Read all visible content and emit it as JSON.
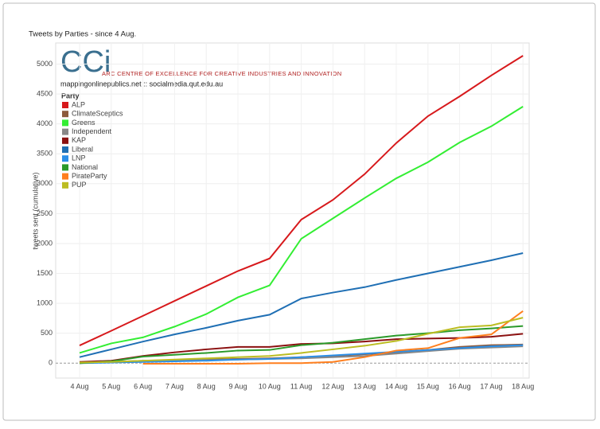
{
  "chart_data": {
    "type": "line",
    "title": "Tweets by Parties - since 4 Aug.",
    "logo_mark": "CCi",
    "logo_text": "ARC CENTRE OF EXCELLENCE FOR CREATIVE INDUSTRIES AND INNOVATION",
    "subtitle": "mappingonlinepublics.net :: socialmedia.qut.edu.au",
    "y_label": "tweets sent (cumulative)",
    "legend_title": "Party",
    "legend_position": "upper left",
    "grid": true,
    "categories": [
      "4 Aug",
      "5 Aug",
      "6 Aug",
      "7 Aug",
      "8 Aug",
      "9 Aug",
      "10 Aug",
      "11 Aug",
      "12 Aug",
      "13 Aug",
      "14 Aug",
      "15 Aug",
      "16 Aug",
      "17 Aug",
      "18 Aug"
    ],
    "ylim": [
      -250,
      5300
    ],
    "yticks": [
      0,
      500,
      1000,
      1500,
      2000,
      2500,
      3000,
      3500,
      4000,
      4500,
      5000
    ],
    "series": [
      {
        "name": "ALP",
        "color": "#d7191c",
        "values": [
          295,
          540,
          790,
          1040,
          1290,
          1540,
          1750,
          2400,
          2730,
          3160,
          3680,
          4130,
          4460,
          4810,
          5140
        ]
      },
      {
        "name": "ClimateSceptics",
        "color": "#8c5a3c",
        "values": [
          0,
          20,
          40,
          50,
          60,
          70,
          80,
          100,
          120,
          150,
          180,
          220,
          270,
          300,
          310
        ]
      },
      {
        "name": "Greens",
        "color": "#33ee33",
        "values": [
          170,
          330,
          430,
          610,
          820,
          1100,
          1300,
          2080,
          2420,
          2760,
          3090,
          3360,
          3690,
          3960,
          4290
        ]
      },
      {
        "name": "Independent",
        "color": "#888888",
        "values": [
          10,
          20,
          30,
          40,
          50,
          60,
          70,
          80,
          100,
          120,
          160,
          200,
          240,
          260,
          280
        ]
      },
      {
        "name": "KAP",
        "color": "#8b1010",
        "values": [
          20,
          40,
          120,
          180,
          230,
          270,
          270,
          320,
          330,
          360,
          400,
          410,
          420,
          440,
          490
        ]
      },
      {
        "name": "Liberal",
        "color": "#1f6fb4",
        "values": [
          100,
          230,
          360,
          480,
          590,
          710,
          810,
          1080,
          1180,
          1270,
          1390,
          1500,
          1610,
          1720,
          1840
        ]
      },
      {
        "name": "LNP",
        "color": "#2b8fe8",
        "values": [
          0,
          10,
          20,
          30,
          40,
          60,
          70,
          100,
          130,
          160,
          190,
          220,
          250,
          280,
          300
        ]
      },
      {
        "name": "National",
        "color": "#2a9a2a",
        "values": [
          0,
          30,
          110,
          140,
          170,
          210,
          220,
          300,
          340,
          400,
          460,
          500,
          550,
          580,
          620
        ]
      },
      {
        "name": "PirateParty",
        "color": "#ff7f1e",
        "values": [
          null,
          null,
          -10,
          -10,
          -10,
          -10,
          0,
          0,
          20,
          100,
          210,
          250,
          420,
          480,
          870
        ]
      },
      {
        "name": "PUP",
        "color": "#bcbd22",
        "values": [
          10,
          20,
          40,
          60,
          80,
          100,
          120,
          170,
          230,
          290,
          370,
          490,
          600,
          630,
          760
        ]
      }
    ]
  }
}
